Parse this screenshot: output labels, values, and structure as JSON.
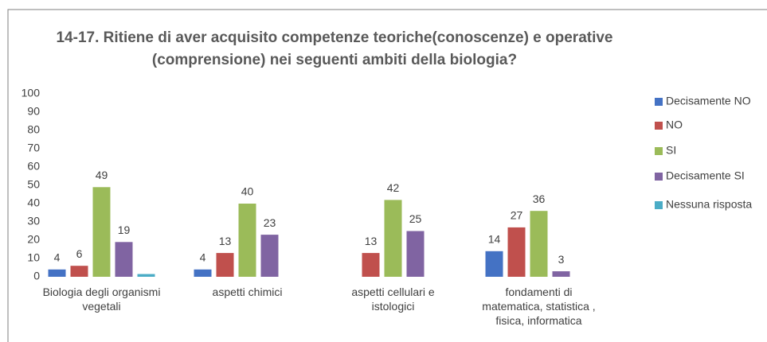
{
  "chart_data": {
    "type": "bar",
    "title": [
      "14-17. Ritiene di aver acquisito competenze teoriche(conoscenze) e operative",
      "(comprensione) nei seguenti ambiti della biologia?"
    ],
    "categories": [
      "Biologia degli organismi vegetali",
      "aspetti chimici",
      "aspetti cellulari e istologici",
      "fondamenti di matematica, statistica , fisica, informatica"
    ],
    "series": [
      {
        "name": "Decisamente NO",
        "color": "#4472c4",
        "values": [
          4,
          4,
          null,
          14
        ]
      },
      {
        "name": "NO",
        "color": "#c0504d",
        "values": [
          6,
          13,
          13,
          27
        ]
      },
      {
        "name": "SI",
        "color": "#9bbb59",
        "values": [
          49,
          40,
          42,
          36
        ]
      },
      {
        "name": "Decisamente SI",
        "color": "#8064a2",
        "values": [
          19,
          23,
          25,
          3
        ]
      },
      {
        "name": "Nessuna risposta",
        "color": "#4bacc6",
        "values": [
          1.5,
          null,
          null,
          null
        ],
        "data_labels": false
      }
    ],
    "ylim": [
      0,
      100
    ],
    "yticks": [
      0,
      10,
      20,
      30,
      40,
      50,
      60,
      70,
      80,
      90,
      100
    ],
    "grid": false,
    "legend": "right"
  }
}
